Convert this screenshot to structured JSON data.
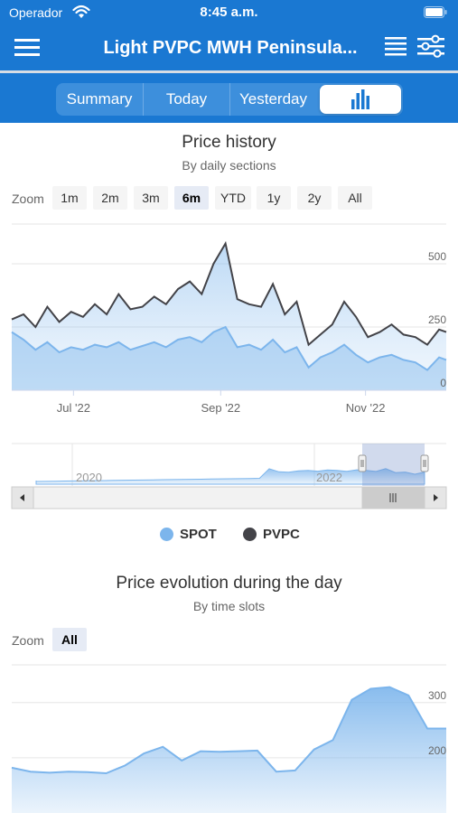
{
  "status": {
    "carrier": "Operador",
    "time": "8:45 a.m."
  },
  "nav": {
    "title": "Light PVPC MWH Peninsula..."
  },
  "tabs": [
    {
      "label": "Summary"
    },
    {
      "label": "Today"
    },
    {
      "label": "Yesterday"
    },
    {
      "label": "",
      "icon": "bar-chart-icon",
      "selected": true
    }
  ],
  "colors": {
    "header": "#1a78d2",
    "spot": "#7cb5ec",
    "pvpc": "#434348"
  },
  "history": {
    "title": "Price history",
    "subtitle": "By daily sections",
    "zoom_label": "Zoom",
    "zoom_buttons": [
      "1m",
      "2m",
      "3m",
      "6m",
      "YTD",
      "1y",
      "2y",
      "All"
    ],
    "zoom_selected": "6m",
    "navigator_years": [
      "2020",
      "2022"
    ]
  },
  "legend": [
    {
      "name": "SPOT",
      "color": "#7cb5ec"
    },
    {
      "name": "PVPC",
      "color": "#434348"
    }
  ],
  "evolution": {
    "title": "Price evolution during the day",
    "subtitle": "By time slots",
    "zoom_label": "Zoom",
    "zoom_buttons": [
      "All"
    ],
    "zoom_selected": "All"
  },
  "chart_data": [
    {
      "type": "line",
      "x_type": "date",
      "x_range": [
        "2022-06-05",
        "2022-12-05"
      ],
      "x_ticks": [
        "Jul '22",
        "Sep '22",
        "Nov '22"
      ],
      "y_ticks": [
        0,
        250,
        500
      ],
      "ylim": [
        0,
        650
      ],
      "grid": true,
      "legend_position": "bottom",
      "series": [
        {
          "name": "PVPC",
          "x": [
            "2022-06-05",
            "2022-06-10",
            "2022-06-15",
            "2022-06-20",
            "2022-06-25",
            "2022-06-30",
            "2022-07-05",
            "2022-07-10",
            "2022-07-15",
            "2022-07-20",
            "2022-07-25",
            "2022-07-30",
            "2022-08-04",
            "2022-08-09",
            "2022-08-14",
            "2022-08-19",
            "2022-08-24",
            "2022-08-29",
            "2022-09-03",
            "2022-09-08",
            "2022-09-13",
            "2022-09-18",
            "2022-09-23",
            "2022-09-28",
            "2022-10-03",
            "2022-10-08",
            "2022-10-13",
            "2022-10-18",
            "2022-10-23",
            "2022-10-28",
            "2022-11-02",
            "2022-11-07",
            "2022-11-12",
            "2022-11-17",
            "2022-11-22",
            "2022-11-27",
            "2022-12-02",
            "2022-12-05"
          ],
          "values": [
            280,
            300,
            250,
            330,
            270,
            310,
            290,
            340,
            300,
            380,
            320,
            330,
            370,
            340,
            400,
            430,
            380,
            500,
            580,
            360,
            340,
            330,
            420,
            300,
            350,
            180,
            220,
            260,
            350,
            290,
            210,
            230,
            260,
            220,
            210,
            180,
            240,
            230
          ]
        },
        {
          "name": "SPOT",
          "x": [
            "2022-06-05",
            "2022-06-10",
            "2022-06-15",
            "2022-06-20",
            "2022-06-25",
            "2022-06-30",
            "2022-07-05",
            "2022-07-10",
            "2022-07-15",
            "2022-07-20",
            "2022-07-25",
            "2022-07-30",
            "2022-08-04",
            "2022-08-09",
            "2022-08-14",
            "2022-08-19",
            "2022-08-24",
            "2022-08-29",
            "2022-09-03",
            "2022-09-08",
            "2022-09-13",
            "2022-09-18",
            "2022-09-23",
            "2022-09-28",
            "2022-10-03",
            "2022-10-08",
            "2022-10-13",
            "2022-10-18",
            "2022-10-23",
            "2022-10-28",
            "2022-11-02",
            "2022-11-07",
            "2022-11-12",
            "2022-11-17",
            "2022-11-22",
            "2022-11-27",
            "2022-12-02",
            "2022-12-05"
          ],
          "values": [
            230,
            200,
            160,
            190,
            150,
            170,
            160,
            180,
            170,
            190,
            160,
            175,
            190,
            170,
            200,
            210,
            190,
            230,
            250,
            170,
            180,
            160,
            200,
            150,
            170,
            90,
            130,
            150,
            180,
            140,
            110,
            130,
            140,
            120,
            110,
            80,
            130,
            120
          ]
        }
      ]
    },
    {
      "type": "area",
      "y_ticks": [
        200,
        300
      ],
      "ylim": [
        100,
        370
      ],
      "grid": true,
      "series": [
        {
          "x": [
            0,
            1,
            2,
            3,
            4,
            5,
            6,
            7,
            8,
            9,
            10,
            11,
            12,
            13,
            14,
            15,
            16,
            17,
            18,
            19,
            20,
            21,
            22,
            23
          ],
          "values": [
            182,
            175,
            173,
            175,
            174,
            172,
            186,
            208,
            220,
            195,
            212,
            211,
            212,
            213,
            175,
            177,
            215,
            232,
            305,
            325,
            328,
            313,
            253,
            253
          ]
        }
      ]
    }
  ]
}
